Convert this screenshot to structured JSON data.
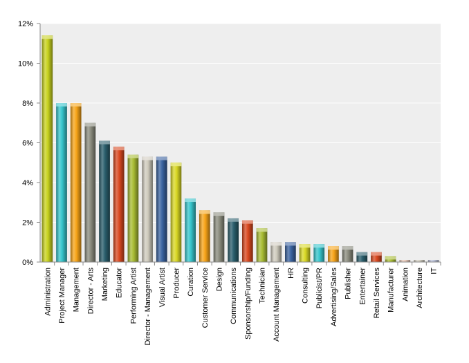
{
  "chart_data": {
    "type": "bar",
    "title": "",
    "xlabel": "",
    "ylabel": "",
    "ylim": [
      0,
      12
    ],
    "yticks": [
      "0%",
      "2%",
      "4%",
      "6%",
      "8%",
      "10%",
      "12%"
    ],
    "ytick_values": [
      0,
      2,
      4,
      6,
      8,
      10,
      12
    ],
    "grid": true,
    "legend": "none",
    "categories": [
      "Administration",
      "Project Manager",
      "Management",
      "Director - Arts",
      "Marketing",
      "Educator",
      "Performing Artist",
      "Director - Management",
      "Visual Artist",
      "Producer",
      "Curation",
      "Customer Service",
      "Design",
      "Communications",
      "Sponsorship/Funding",
      "Technician",
      "Account Management",
      "HR",
      "Consulting",
      "Publicist/PR",
      "Advertising/Sales",
      "Publisher",
      "Entertainer",
      "Retail Services",
      "Manufacturer",
      "Animation",
      "Architecture",
      "IT"
    ],
    "values": [
      11.4,
      8.0,
      8.0,
      7.0,
      6.1,
      5.8,
      5.4,
      5.3,
      5.3,
      5.0,
      3.2,
      2.6,
      2.5,
      2.2,
      2.1,
      1.7,
      1.0,
      1.0,
      0.9,
      0.9,
      0.8,
      0.8,
      0.5,
      0.5,
      0.3,
      0.1,
      0.1,
      0.1
    ],
    "colors": [
      "#c8d21f",
      "#36c5cc",
      "#f7a418",
      "#8b8c7e",
      "#2a5e6c",
      "#d9481f",
      "#a8bc33",
      "#cfcbbd",
      "#3a63a0",
      "#d9d825",
      "#36c5cc",
      "#f7a418",
      "#8b8c7e",
      "#2a5e6c",
      "#d9481f",
      "#a8bc33",
      "#cfcbbd",
      "#3a63a0",
      "#d9d825",
      "#36c5cc",
      "#f7a418",
      "#8b8c7e",
      "#2a5e6c",
      "#d9481f",
      "#a8bc33",
      "#e8c8b8",
      "#cfcbbd",
      "#b8bfd8"
    ]
  }
}
